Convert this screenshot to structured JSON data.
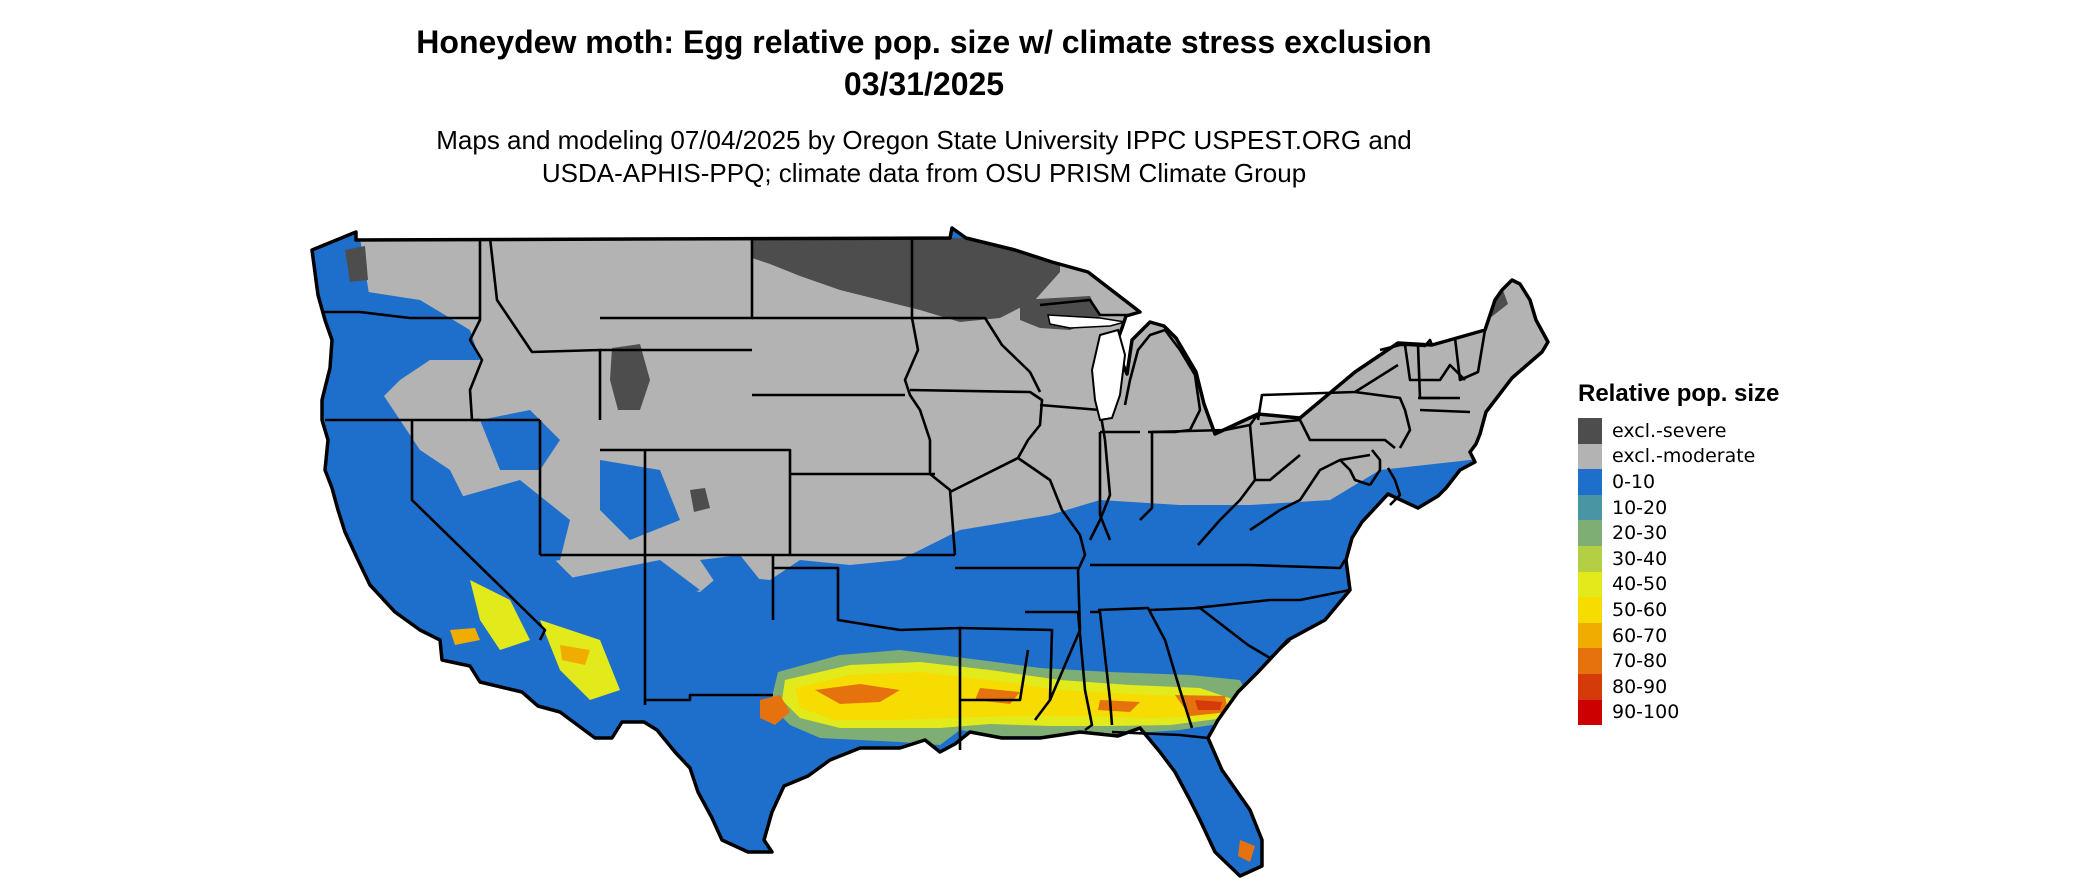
{
  "title_line1": "Honeydew moth: Egg relative pop. size w/ climate stress exclusion",
  "title_line2": "03/31/2025",
  "subtitle_line1": "Maps and modeling 07/04/2025 by Oregon State University IPPC USPEST.ORG and",
  "subtitle_line2": "USDA-APHIS-PPQ; climate data from OSU PRISM Climate Group",
  "legend": {
    "title": "Relative pop. size",
    "items": [
      {
        "label": "excl.-severe",
        "color": "#4d4d4d"
      },
      {
        "label": "excl.-moderate",
        "color": "#b3b3b3"
      },
      {
        "label": "0-10",
        "color": "#1e6fcc"
      },
      {
        "label": "10-20",
        "color": "#4a95a3"
      },
      {
        "label": "20-30",
        "color": "#7fae74"
      },
      {
        "label": "30-40",
        "color": "#b5cf45"
      },
      {
        "label": "40-50",
        "color": "#e3ea1c"
      },
      {
        "label": "50-60",
        "color": "#f6dc00"
      },
      {
        "label": "60-70",
        "color": "#f0ad00"
      },
      {
        "label": "70-80",
        "color": "#e6720e"
      },
      {
        "label": "80-90",
        "color": "#d53a0a"
      },
      {
        "label": "90-100",
        "color": "#cc0000"
      }
    ]
  }
}
